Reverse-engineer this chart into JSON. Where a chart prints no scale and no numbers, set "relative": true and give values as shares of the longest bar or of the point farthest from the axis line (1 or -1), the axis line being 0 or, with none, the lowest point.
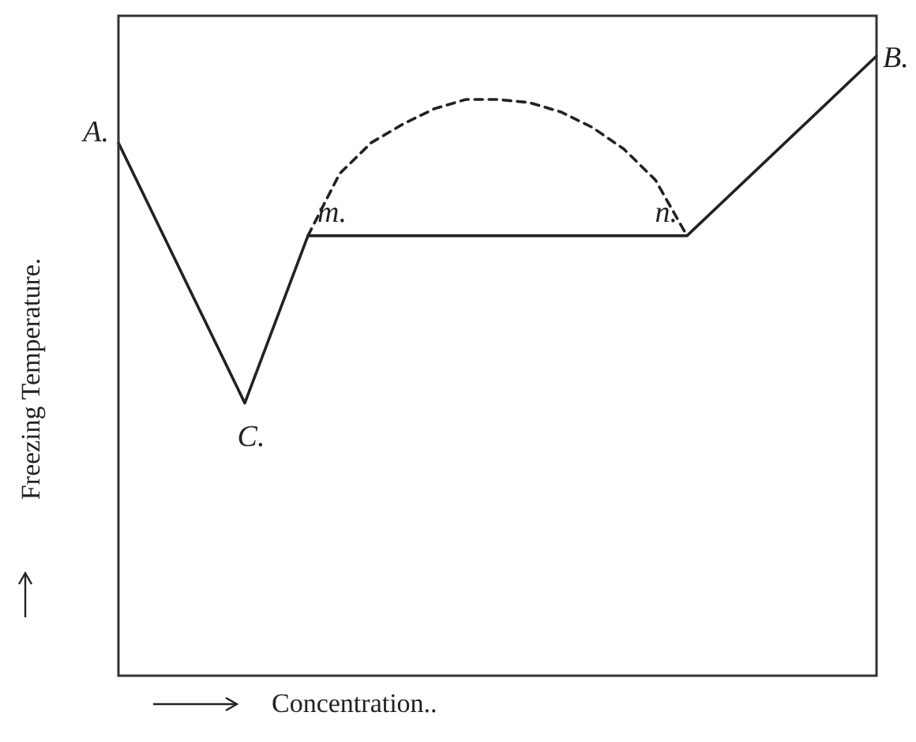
{
  "chart_data": {
    "type": "line",
    "relative": true,
    "xlabel": "Concentration..",
    "ylabel": "Freezing Temperature.",
    "grid": false,
    "legend": false,
    "marker": "none",
    "categories": [
      null,
      null,
      null,
      null,
      null,
      null,
      null,
      null,
      null,
      null,
      null,
      null,
      null,
      null,
      null,
      null,
      null,
      null,
      null,
      null,
      null,
      null,
      null,
      null,
      null
    ],
    "series": [
      {
        "color": "#222222",
        "line_style": "solid",
        "values": [
          0.86,
          null,
          null,
          null,
          0.44,
          null,
          0.71,
          null,
          null,
          null,
          null,
          null,
          null,
          null,
          null,
          null,
          null,
          null,
          0.71,
          null,
          null,
          null,
          null,
          null,
          1
        ]
      },
      {
        "color": "#222222",
        "line_style": "dashed",
        "values": [
          null,
          null,
          null,
          null,
          null,
          null,
          0.71,
          0.81,
          0.86,
          0.89,
          0.915,
          0.93,
          0.93,
          0.925,
          0.91,
          0.885,
          0.85,
          0.8,
          0.71,
          null,
          null,
          null,
          null,
          null,
          null
        ]
      }
    ],
    "annotations": [
      "A.",
      "C.",
      "m.",
      "n.",
      "B."
    ]
  }
}
